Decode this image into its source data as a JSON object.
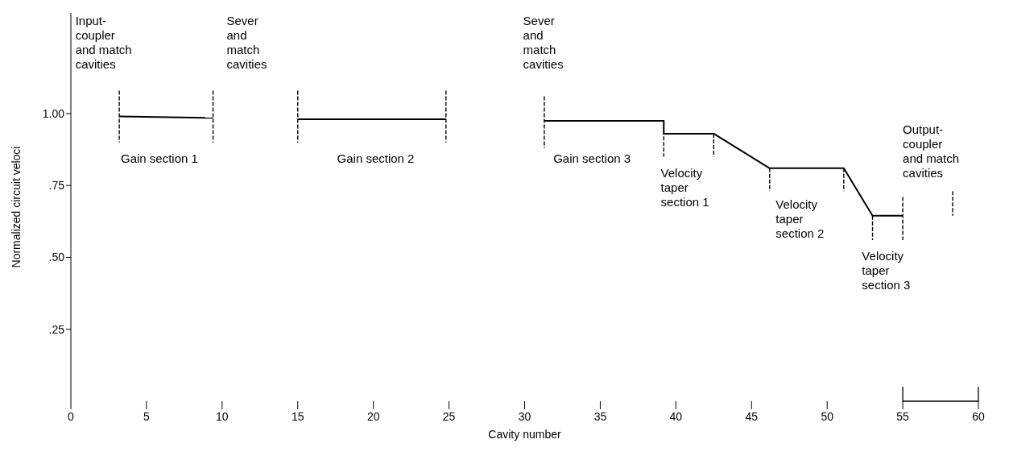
{
  "chart_data": {
    "type": "line",
    "xlabel": "Cavity number",
    "ylabel": "Normalized circuit veloci",
    "xlim": [
      0,
      60
    ],
    "xticks": [
      0,
      5,
      10,
      15,
      20,
      25,
      30,
      35,
      40,
      45,
      50,
      55,
      60
    ],
    "ylim": [
      0,
      1.35
    ],
    "yticks": [
      {
        "value": 0.25,
        "label": ".25"
      },
      {
        "value": 0.5,
        "label": ".50"
      },
      {
        "value": 0.75,
        "label": ".75"
      },
      {
        "value": 1,
        "label": "1.00"
      }
    ],
    "marker": "none",
    "series": [
      {
        "color": "#000000",
        "line_style": "solid",
        "x": [
          3.2,
          9.4
        ],
        "values": [
          0.99,
          0.985
        ]
      },
      {
        "color": "#000000",
        "line_style": "solid",
        "x": [
          15,
          24.8
        ],
        "values": [
          0.98,
          0.98
        ]
      },
      {
        "color": "#000000",
        "line_style": "solid",
        "x": [
          31.3,
          39.2,
          39.2,
          42.5,
          46.2,
          51.1,
          53,
          55
        ],
        "values": [
          0.975,
          0.975,
          0.93,
          0.93,
          0.81,
          0.81,
          0.645,
          0.645
        ]
      },
      {
        "color": "#000000",
        "line_style": "dashed",
        "x": [
          3.2,
          3.2
        ],
        "values": [
          1.08,
          0.9
        ]
      },
      {
        "color": "#000000",
        "line_style": "dashed",
        "x": [
          9.4,
          9.4
        ],
        "values": [
          1.08,
          0.9
        ]
      },
      {
        "color": "#000000",
        "line_style": "dashed",
        "x": [
          15,
          15
        ],
        "values": [
          1.08,
          0.9
        ]
      },
      {
        "color": "#000000",
        "line_style": "dashed",
        "x": [
          24.8,
          24.8
        ],
        "values": [
          1.08,
          0.9
        ]
      },
      {
        "color": "#000000",
        "line_style": "dashed",
        "x": [
          31.3,
          31.3
        ],
        "values": [
          1.06,
          0.88
        ]
      },
      {
        "color": "#000000",
        "line_style": "dashed",
        "x": [
          39.2,
          39.2
        ],
        "values": [
          0.96,
          0.85
        ]
      },
      {
        "color": "#000000",
        "line_style": "dashed",
        "x": [
          42.5,
          42.5
        ],
        "values": [
          0.93,
          0.85
        ]
      },
      {
        "color": "#000000",
        "line_style": "dashed",
        "x": [
          46.2,
          46.2
        ],
        "values": [
          0.81,
          0.73
        ]
      },
      {
        "color": "#000000",
        "line_style": "dashed",
        "x": [
          51.1,
          51.1
        ],
        "values": [
          0.81,
          0.73
        ]
      },
      {
        "color": "#000000",
        "line_style": "dashed",
        "x": [
          53,
          53
        ],
        "values": [
          0.645,
          0.56
        ]
      },
      {
        "color": "#000000",
        "line_style": "dashed",
        "x": [
          55,
          55
        ],
        "values": [
          0.71,
          0.56
        ]
      },
      {
        "color": "#000000",
        "line_style": "dashed",
        "x": [
          58.3,
          58.3
        ],
        "values": [
          0.73,
          0.645
        ]
      }
    ],
    "annotations": [
      "Input-\ncoupler\nand match\ncavities",
      "Sever\nand\nmatch\ncavities",
      "Sever\nand\nmatch\ncavities",
      "Gain section 1",
      "Gain section 2",
      "Gain section 3",
      "Velocity\ntaper\nsection 1",
      "Velocity\ntaper\nsection 2",
      "Velocity\ntaper\nsection 3",
      "Output-\ncoupler\nand match\ncavities"
    ]
  }
}
